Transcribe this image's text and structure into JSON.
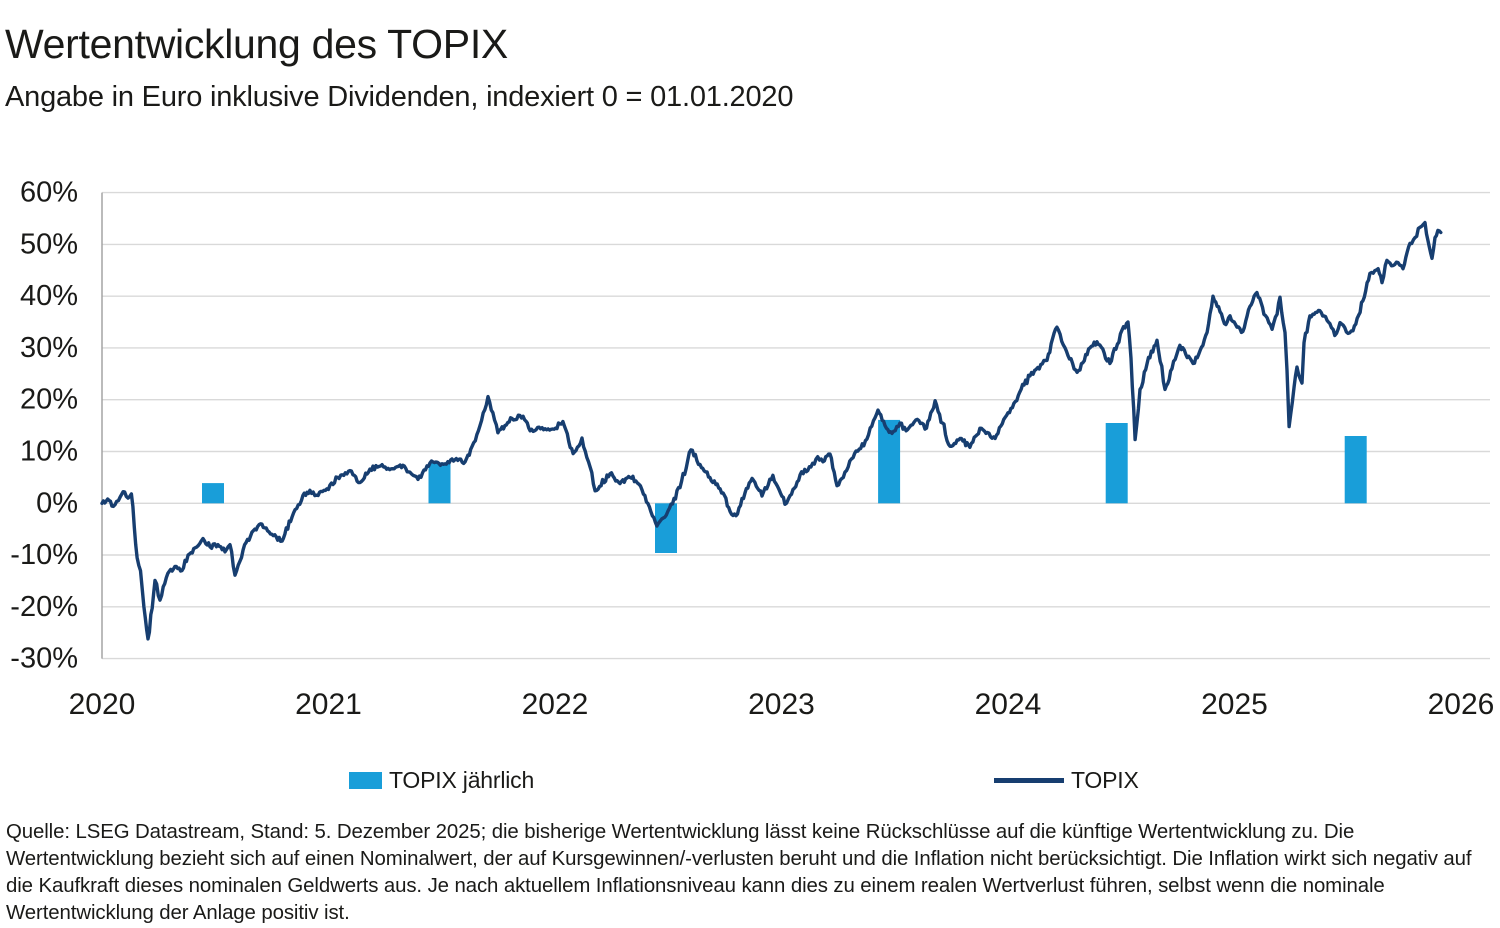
{
  "header": {
    "title": "Wertentwicklung des TOPIX",
    "subtitle": "Angabe in Euro inklusive Dividenden, indexiert 0 = 01.01.2020"
  },
  "legend": {
    "bar_label": "TOPIX jährlich",
    "line_label": "TOPIX"
  },
  "footer": {
    "text": "Quelle: LSEG Datastream, Stand: 5. Dezember 2025; die bisherige Wertentwicklung lässt keine Rückschlüsse auf die künftige Wertentwicklung zu. Die Wertentwicklung bezieht sich auf einen Nominalwert, der auf Kursgewinnen/-verlusten beruht und die Inflation nicht berücksichtigt. Die Inflation wirkt sich negativ auf die Kaufkraft dieses nominalen Geldwerts aus. Je nach aktuellem Inflationsniveau kann dies zu einem realen Wertverlust führen, selbst wenn die nominale Wertentwicklung der Anlage positiv ist."
  },
  "colors": {
    "bar": "#199ed9",
    "line": "#173e70",
    "grid": "#d9d9d9",
    "axis": "#9e9e9e",
    "text": "#1a1a18"
  },
  "chart_data": {
    "type": "combo-bar-line",
    "title": "Wertentwicklung des TOPIX",
    "subtitle": "Angabe in Euro inklusive Dividenden, indexiert 0 = 01.01.2020",
    "unit": "%",
    "grid": true,
    "legend_position": "bottom",
    "x_axis": {
      "ticks": [
        2020,
        2021,
        2022,
        2023,
        2024,
        2025,
        2026
      ],
      "tick_labels": [
        "2020",
        "2021",
        "2022",
        "2023",
        "2024",
        "2025",
        "2026"
      ]
    },
    "y_axis": {
      "range": [
        -30,
        60
      ],
      "tick_values": [
        60,
        50,
        40,
        30,
        20,
        10,
        0,
        -10,
        -20,
        -30
      ],
      "tick_labels": [
        "60%",
        "50%",
        "40%",
        "30%",
        "20%",
        "10%",
        "0%",
        "-10%",
        "-20%",
        "-30%"
      ]
    },
    "bar_series": {
      "name": "TOPIX jährlich",
      "points": [
        {
          "year": "2020",
          "pos": 2020.49,
          "value": 3.9
        },
        {
          "year": "2021",
          "pos": 2021.49,
          "value": 7.9
        },
        {
          "year": "2022",
          "pos": 2022.49,
          "value": -9.6
        },
        {
          "year": "2023",
          "pos": 2023.475,
          "value": 16.1
        },
        {
          "year": "2024",
          "pos": 2024.48,
          "value": 15.5
        },
        {
          "year": "2025",
          "pos": 2025.535,
          "value": 13.0
        }
      ]
    },
    "line_series": {
      "name": "TOPIX",
      "points": [
        [
          2020.0,
          0
        ],
        [
          2020.025,
          0.8
        ],
        [
          2020.05,
          -0.6
        ],
        [
          2020.08,
          1.2
        ],
        [
          2020.1,
          2.2
        ],
        [
          2020.115,
          1.0
        ],
        [
          2020.13,
          1.8
        ],
        [
          2020.155,
          -10.5
        ],
        [
          2020.17,
          -13.0
        ],
        [
          2020.185,
          -20.0
        ],
        [
          2020.203,
          -26.2
        ],
        [
          2020.234,
          -14.9
        ],
        [
          2020.256,
          -18.7
        ],
        [
          2020.291,
          -13.5
        ],
        [
          2020.322,
          -12.2
        ],
        [
          2020.353,
          -13.0
        ],
        [
          2020.38,
          -10.0
        ],
        [
          2020.411,
          -8.6
        ],
        [
          2020.446,
          -6.8
        ],
        [
          2020.477,
          -8.4
        ],
        [
          2020.512,
          -8.0
        ],
        [
          2020.543,
          -9.4
        ],
        [
          2020.565,
          -8.0
        ],
        [
          2020.587,
          -13.9
        ],
        [
          2020.623,
          -9.0
        ],
        [
          2020.662,
          -5.6
        ],
        [
          2020.706,
          -4.0
        ],
        [
          2020.75,
          -6.0
        ],
        [
          2020.795,
          -7.3
        ],
        [
          2020.839,
          -2.7
        ],
        [
          2020.887,
          1.5
        ],
        [
          2020.918,
          2.5
        ],
        [
          2020.954,
          1.5
        ],
        [
          2020.993,
          2.8
        ],
        [
          2021.04,
          5.0
        ],
        [
          2021.095,
          6.3
        ],
        [
          2021.139,
          4.0
        ],
        [
          2021.183,
          6.6
        ],
        [
          2021.23,
          7.2
        ],
        [
          2021.27,
          6.5
        ],
        [
          2021.316,
          7.4
        ],
        [
          2021.36,
          6.0
        ],
        [
          2021.395,
          4.6
        ],
        [
          2021.448,
          7.8
        ],
        [
          2021.514,
          7.6
        ],
        [
          2021.558,
          8.4
        ],
        [
          2021.603,
          8.0
        ],
        [
          2021.634,
          11.0
        ],
        [
          2021.669,
          15.0
        ],
        [
          2021.704,
          20.6
        ],
        [
          2021.726,
          17.5
        ],
        [
          2021.748,
          13.6
        ],
        [
          2021.779,
          15.0
        ],
        [
          2021.81,
          16.4
        ],
        [
          2021.859,
          16.8
        ],
        [
          2021.89,
          14.0
        ],
        [
          2021.943,
          14.6
        ],
        [
          2021.996,
          14.3
        ],
        [
          2022.035,
          15.8
        ],
        [
          2022.08,
          9.6
        ],
        [
          2022.119,
          12.6
        ],
        [
          2022.155,
          7.0
        ],
        [
          2022.177,
          2.4
        ],
        [
          2022.243,
          5.7
        ],
        [
          2022.287,
          3.8
        ],
        [
          2022.344,
          5.2
        ],
        [
          2022.397,
          1.5
        ],
        [
          2022.45,
          -4.4
        ],
        [
          2022.499,
          -1.5
        ],
        [
          2022.552,
          3.0
        ],
        [
          2022.6,
          10.3
        ],
        [
          2022.64,
          7.5
        ],
        [
          2022.684,
          5.0
        ],
        [
          2022.742,
          2.0
        ],
        [
          2022.773,
          -1.6
        ],
        [
          2022.799,
          -2.4
        ],
        [
          2022.839,
          2.0
        ],
        [
          2022.87,
          4.8
        ],
        [
          2022.914,
          1.4
        ],
        [
          2022.962,
          5.4
        ],
        [
          2023.015,
          -0.2
        ],
        [
          2023.038,
          1.5
        ],
        [
          2023.082,
          5.5
        ],
        [
          2023.13,
          7.0
        ],
        [
          2023.16,
          9.0
        ],
        [
          2023.183,
          8.0
        ],
        [
          2023.214,
          9.5
        ],
        [
          2023.245,
          3.4
        ],
        [
          2023.28,
          6.0
        ],
        [
          2023.316,
          8.8
        ],
        [
          2023.377,
          12.4
        ],
        [
          2023.413,
          16.5
        ],
        [
          2023.426,
          18.0
        ],
        [
          2023.457,
          15.0
        ],
        [
          2023.488,
          13.5
        ],
        [
          2023.523,
          15.5
        ],
        [
          2023.55,
          14.0
        ],
        [
          2023.6,
          16.2
        ],
        [
          2023.64,
          14.5
        ],
        [
          2023.678,
          19.8
        ],
        [
          2023.744,
          11.0
        ],
        [
          2023.788,
          12.5
        ],
        [
          2023.832,
          10.8
        ],
        [
          2023.876,
          14.5
        ],
        [
          2023.943,
          12.5
        ],
        [
          2024.0,
          17.5
        ],
        [
          2024.097,
          24.6
        ],
        [
          2024.172,
          27.6
        ],
        [
          2024.216,
          34.0
        ],
        [
          2024.265,
          28.5
        ],
        [
          2024.305,
          25.3
        ],
        [
          2024.362,
          30.0
        ],
        [
          2024.393,
          31.2
        ],
        [
          2024.45,
          27.0
        ],
        [
          2024.503,
          33.4
        ],
        [
          2024.53,
          35.0
        ],
        [
          2024.543,
          28.0
        ],
        [
          2024.561,
          12.3
        ],
        [
          2024.583,
          22.0
        ],
        [
          2024.614,
          27.0
        ],
        [
          2024.658,
          31.5
        ],
        [
          2024.693,
          22.0
        ],
        [
          2024.724,
          26.0
        ],
        [
          2024.759,
          30.5
        ],
        [
          2024.817,
          27.0
        ],
        [
          2024.848,
          29.5
        ],
        [
          2024.879,
          33.0
        ],
        [
          2024.905,
          40.0
        ],
        [
          2024.936,
          37.0
        ],
        [
          2024.962,
          34.5
        ],
        [
          2024.98,
          36.2
        ],
        [
          2025.011,
          34.0
        ],
        [
          2025.037,
          33.2
        ],
        [
          2025.068,
          38.0
        ],
        [
          2025.099,
          40.7
        ],
        [
          2025.13,
          36.5
        ],
        [
          2025.166,
          33.6
        ],
        [
          2025.188,
          36.5
        ],
        [
          2025.201,
          39.8
        ],
        [
          2025.223,
          33.0
        ],
        [
          2025.232,
          25.7
        ],
        [
          2025.241,
          14.8
        ],
        [
          2025.263,
          22.5
        ],
        [
          2025.276,
          26.3
        ],
        [
          2025.298,
          23.2
        ],
        [
          2025.307,
          31.0
        ],
        [
          2025.333,
          36.2
        ],
        [
          2025.377,
          37.2
        ],
        [
          2025.421,
          34.7
        ],
        [
          2025.443,
          32.4
        ],
        [
          2025.466,
          34.9
        ],
        [
          2025.501,
          32.8
        ],
        [
          2025.523,
          33.3
        ],
        [
          2025.567,
          39.1
        ],
        [
          2025.598,
          44.4
        ],
        [
          2025.634,
          45.3
        ],
        [
          2025.651,
          42.6
        ],
        [
          2025.673,
          46.9
        ],
        [
          2025.7,
          45.9
        ],
        [
          2025.722,
          46.5
        ],
        [
          2025.744,
          45.3
        ],
        [
          2025.775,
          50.2
        ],
        [
          2025.797,
          51.3
        ],
        [
          2025.819,
          53.3
        ],
        [
          2025.841,
          54.2
        ],
        [
          2025.854,
          50.8
        ],
        [
          2025.872,
          47.3
        ],
        [
          2025.885,
          51.3
        ],
        [
          2025.898,
          52.7
        ],
        [
          2025.911,
          52.3
        ]
      ]
    }
  }
}
